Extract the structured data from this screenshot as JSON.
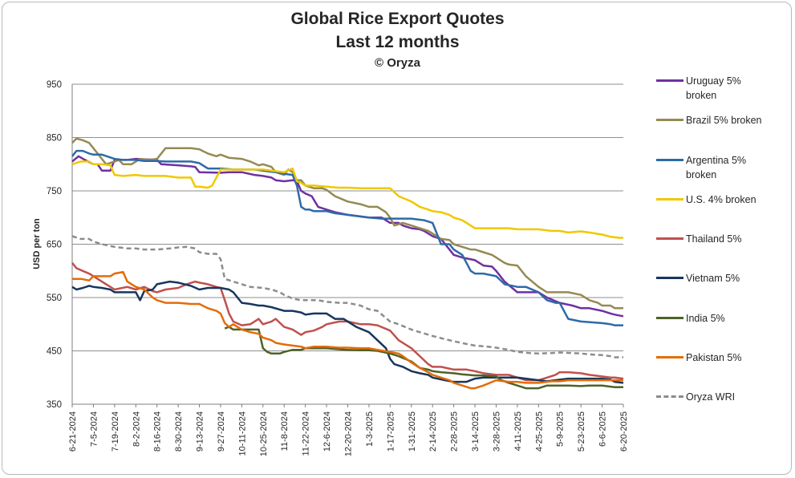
{
  "chart_data": {
    "type": "line",
    "title": "Global Rice Export Quotes",
    "subtitle": "Last 12 months",
    "source": "© Oryza",
    "ylabel": "USD per ton",
    "xlabel": "",
    "ylim": [
      350,
      950
    ],
    "yticks": [
      350,
      450,
      550,
      650,
      750,
      850,
      950
    ],
    "grid": true,
    "legend": "right",
    "x_ticks": [
      "6-21-2024",
      "7-5-2024",
      "7-19-2024",
      "8-2-2024",
      "8-16-2024",
      "8-30-2024",
      "9-13-2024",
      "9-27-2024",
      "10-11-2024",
      "10-25-2024",
      "11-8-2024",
      "11-22-2024",
      "12-6-2024",
      "12-20-2024",
      "1-3-2025",
      "1-17-2025",
      "1-31-2025",
      "2-14-2025",
      "2-28-2025",
      "3-14-2025",
      "3-28-2025",
      "4-11-2025",
      "4-25-2025",
      "5-9-2025",
      "5-23-2025",
      "6-6-2025",
      "6-20-2025"
    ],
    "series": [
      {
        "name": "Uruguay 5% broken",
        "color": "#7030a0",
        "dashed": false,
        "x": [
          0,
          0.3,
          0.6,
          1,
          1.2,
          1.4,
          1.8,
          2,
          2.4,
          2.6,
          3,
          4,
          4.2,
          5,
          5.6,
          5.8,
          6,
          7,
          7.4,
          8,
          8.6,
          9,
          9.4,
          9.6,
          10,
          10.4,
          10.6,
          10.8,
          11,
          11.3,
          11.6,
          12,
          12.4,
          13,
          14,
          14.2,
          14.6,
          15,
          15.4,
          15.6,
          16,
          16.4,
          16.6,
          17,
          17.4,
          17.6,
          18,
          18.4,
          19,
          19.4,
          19.8,
          20,
          20.4,
          21,
          21.6,
          22,
          22.4,
          23,
          23.6,
          24,
          24.4,
          25,
          25.4,
          25.6,
          26
        ],
        "y": [
          805,
          815,
          808,
          800,
          800,
          788,
          788,
          808,
          808,
          808,
          810,
          808,
          800,
          798,
          796,
          795,
          785,
          784,
          785,
          785,
          780,
          778,
          775,
          770,
          768,
          770,
          768,
          750,
          745,
          740,
          720,
          715,
          710,
          705,
          700,
          700,
          700,
          690,
          690,
          685,
          680,
          678,
          675,
          665,
          660,
          650,
          630,
          625,
          620,
          610,
          608,
          600,
          580,
          560,
          560,
          560,
          550,
          540,
          535,
          530,
          530,
          525,
          520,
          518,
          515
        ]
      },
      {
        "name": "Brazil 5% broken",
        "color": "#948a54",
        "dashed": false,
        "x": [
          0,
          0.2,
          0.5,
          0.8,
          1,
          1.2,
          1.6,
          2,
          2.2,
          2.4,
          2.8,
          3.2,
          3.6,
          4,
          4.4,
          5,
          5.6,
          6,
          6.4,
          6.8,
          7,
          7.4,
          8,
          8.4,
          8.8,
          9,
          9.4,
          9.6,
          10,
          10.2,
          10.4,
          10.6,
          10.8,
          11,
          11.4,
          11.8,
          12,
          12.4,
          13,
          13.6,
          14,
          14.4,
          14.8,
          15,
          15.2,
          15.6,
          16,
          16.4,
          16.8,
          17,
          17.4,
          17.8,
          18,
          18.4,
          18.8,
          19,
          19.4,
          19.8,
          20,
          20.4,
          20.6,
          21,
          21.4,
          22,
          22.4,
          22.8,
          23,
          23.4,
          24,
          24.4,
          24.8,
          25,
          25.4,
          25.6,
          26
        ],
        "y": [
          840,
          848,
          845,
          840,
          830,
          820,
          800,
          805,
          808,
          800,
          800,
          810,
          808,
          810,
          830,
          830,
          830,
          828,
          820,
          815,
          818,
          812,
          810,
          805,
          798,
          800,
          795,
          785,
          780,
          790,
          785,
          770,
          770,
          760,
          755,
          755,
          752,
          740,
          730,
          725,
          720,
          720,
          710,
          700,
          685,
          690,
          685,
          680,
          675,
          670,
          660,
          658,
          650,
          645,
          640,
          640,
          635,
          630,
          625,
          615,
          612,
          610,
          590,
          570,
          560,
          560,
          560,
          560,
          555,
          545,
          540,
          535,
          535,
          530,
          530
        ]
      },
      {
        "name": "Argentina 5% broken",
        "color": "#2e6aa8",
        "dashed": false,
        "x": [
          0,
          0.2,
          0.5,
          0.8,
          1,
          1.4,
          2,
          2.4,
          3,
          3.4,
          4,
          4.4,
          5,
          5.6,
          6,
          6.4,
          7,
          7.6,
          8,
          8.6,
          9,
          9.4,
          9.6,
          10,
          10.4,
          10.6,
          10.8,
          11,
          11.2,
          11.4,
          12,
          12.4,
          13,
          14,
          14.6,
          15,
          15.4,
          16,
          16.6,
          17,
          17.4,
          17.8,
          18,
          18.4,
          18.8,
          19,
          19.4,
          20,
          20.4,
          21,
          21.4,
          22,
          22.4,
          22.8,
          23,
          23.4,
          24,
          25,
          25.4,
          25.6,
          26
        ],
        "y": [
          815,
          825,
          825,
          820,
          818,
          818,
          810,
          808,
          808,
          806,
          806,
          805,
          805,
          805,
          802,
          792,
          792,
          790,
          790,
          790,
          788,
          786,
          785,
          782,
          780,
          760,
          720,
          715,
          715,
          712,
          712,
          708,
          705,
          700,
          698,
          698,
          698,
          698,
          695,
          690,
          650,
          650,
          640,
          630,
          600,
          595,
          595,
          590,
          575,
          570,
          570,
          560,
          545,
          540,
          540,
          510,
          505,
          502,
          500,
          498,
          498
        ]
      },
      {
        "name": "U.S. 4% broken",
        "color": "#f0c800",
        "dashed": false,
        "x": [
          0,
          0.4,
          0.8,
          1,
          1.4,
          1.8,
          2,
          2.4,
          3,
          3.4,
          4,
          4.4,
          5,
          5.6,
          5.8,
          6,
          6.4,
          6.6,
          7,
          7.4,
          8,
          8.6,
          9,
          9.4,
          10,
          10.4,
          10.6,
          10.8,
          11,
          11.4,
          12,
          12.6,
          13,
          13.6,
          14,
          14.4,
          15,
          15.4,
          16,
          16.4,
          16.8,
          17,
          17.4,
          17.8,
          18,
          18.4,
          19,
          19.4,
          20,
          20.6,
          21,
          21.4,
          22,
          22.6,
          23,
          23.4,
          24,
          24.4,
          25,
          25.4,
          25.8,
          26
        ],
        "y": [
          800,
          805,
          805,
          800,
          800,
          798,
          780,
          778,
          780,
          778,
          778,
          778,
          775,
          775,
          758,
          758,
          756,
          760,
          790,
          790,
          790,
          790,
          790,
          788,
          785,
          792,
          768,
          765,
          760,
          760,
          758,
          756,
          756,
          755,
          755,
          755,
          755,
          740,
          730,
          720,
          715,
          712,
          710,
          705,
          700,
          695,
          680,
          680,
          680,
          680,
          678,
          678,
          678,
          675,
          675,
          672,
          674,
          672,
          668,
          664,
          662,
          662
        ]
      },
      {
        "name": "Thailand 5%",
        "color": "#c0504d",
        "dashed": false,
        "x": [
          0,
          0.2,
          0.5,
          0.8,
          1,
          1.4,
          1.8,
          2,
          2.6,
          3,
          3.4,
          3.8,
          4,
          4.4,
          5,
          5.4,
          5.8,
          6,
          6.4,
          6.8,
          7,
          7.2,
          7.4,
          7.6,
          8,
          8.4,
          8.8,
          9,
          9.4,
          9.6,
          10,
          10.4,
          10.8,
          11,
          11.4,
          11.8,
          12,
          12.6,
          13,
          13.6,
          14,
          14.4,
          15,
          15.4,
          16,
          16.4,
          16.8,
          17,
          17.4,
          18,
          18.6,
          19,
          19.4,
          20,
          20.6,
          21,
          21.4,
          22,
          22.4,
          22.8,
          23,
          23.4,
          24,
          24.4,
          25,
          25.4,
          25.6,
          26
        ],
        "y": [
          615,
          605,
          600,
          595,
          590,
          580,
          570,
          565,
          570,
          565,
          570,
          562,
          560,
          565,
          568,
          575,
          580,
          578,
          575,
          570,
          568,
          545,
          520,
          505,
          498,
          500,
          510,
          500,
          505,
          510,
          495,
          490,
          480,
          485,
          488,
          495,
          500,
          505,
          505,
          500,
          500,
          498,
          488,
          470,
          455,
          440,
          425,
          420,
          420,
          415,
          415,
          412,
          408,
          405,
          405,
          400,
          395,
          395,
          400,
          405,
          410,
          410,
          408,
          405,
          402,
          400,
          400,
          398
        ]
      },
      {
        "name": "Vietnam 5%",
        "color": "#17365d",
        "dashed": false,
        "x": [
          0,
          0.2,
          0.5,
          0.8,
          1,
          1.4,
          1.8,
          2,
          2.6,
          3,
          3.2,
          3.4,
          3.8,
          4,
          4.6,
          5,
          5.6,
          6,
          6.4,
          7,
          7.4,
          7.6,
          8,
          8.4,
          8.8,
          9,
          9.4,
          10,
          10.4,
          10.8,
          11,
          11.4,
          12,
          12.4,
          12.8,
          13,
          13.4,
          14,
          14.4,
          14.8,
          15,
          15.2,
          15.6,
          16,
          16.4,
          16.8,
          17,
          17.6,
          18,
          18.6,
          19,
          19.4,
          20,
          20.6,
          21,
          21.4,
          22,
          22.4,
          23,
          23.4,
          24,
          24.4,
          25,
          25.4,
          25.6,
          26
        ],
        "y": [
          570,
          565,
          568,
          572,
          570,
          568,
          565,
          560,
          560,
          560,
          545,
          562,
          565,
          575,
          580,
          578,
          572,
          565,
          568,
          568,
          565,
          560,
          540,
          538,
          535,
          535,
          532,
          525,
          525,
          522,
          518,
          520,
          520,
          510,
          510,
          505,
          495,
          485,
          470,
          455,
          435,
          425,
          420,
          412,
          408,
          405,
          400,
          395,
          392,
          392,
          398,
          400,
          400,
          400,
          400,
          398,
          395,
          393,
          396,
          398,
          398,
          398,
          398,
          396,
          392,
          390
        ]
      },
      {
        "name": "India 5%",
        "color": "#4f6228",
        "dashed": false,
        "x": [
          7.2,
          7.4,
          7.6,
          8,
          8.4,
          8.8,
          9,
          9.2,
          9.4,
          9.8,
          10,
          10.4,
          10.8,
          11,
          11.4,
          12,
          12.6,
          13,
          13.6,
          14,
          14.4,
          15,
          15.4,
          16,
          16.4,
          16.8,
          17,
          17.4,
          18,
          18.4,
          19,
          19.4,
          20,
          20.2,
          20.6,
          21,
          21.4,
          22,
          22.4,
          23,
          23.4,
          24,
          24.4,
          25,
          25.4,
          25.6,
          26
        ],
        "y": [
          492,
          495,
          490,
          490,
          490,
          490,
          455,
          448,
          445,
          445,
          448,
          452,
          452,
          455,
          455,
          455,
          453,
          452,
          451,
          451,
          450,
          445,
          440,
          430,
          418,
          415,
          412,
          410,
          408,
          406,
          404,
          404,
          402,
          396,
          390,
          385,
          380,
          380,
          385,
          385,
          385,
          384,
          385,
          385,
          383,
          382,
          382
        ]
      },
      {
        "name": "Pakistan 5%",
        "color": "#e36c09",
        "dashed": false,
        "x": [
          0,
          0.4,
          0.8,
          1,
          1.4,
          1.8,
          2,
          2.4,
          2.6,
          3,
          3.4,
          3.8,
          4,
          4.4,
          5,
          5.6,
          6,
          6.4,
          6.8,
          7,
          7.2,
          7.4,
          7.6,
          8,
          8.4,
          8.8,
          9,
          9.4,
          9.6,
          10,
          10.4,
          10.8,
          11,
          11.4,
          12,
          12.6,
          13,
          13.6,
          14,
          14.4,
          15,
          15.4,
          15.6,
          16,
          16.4,
          16.8,
          17,
          17.4,
          17.8,
          18,
          18.4,
          18.8,
          19,
          19.4,
          20,
          20.6,
          21,
          21.4,
          22,
          22.6,
          23,
          23.4,
          24,
          24.4,
          25,
          25.4,
          25.6,
          26
        ],
        "y": [
          585,
          585,
          582,
          590,
          590,
          590,
          595,
          598,
          580,
          570,
          565,
          550,
          545,
          540,
          540,
          538,
          538,
          530,
          525,
          520,
          502,
          495,
          500,
          490,
          485,
          482,
          475,
          470,
          465,
          462,
          460,
          458,
          455,
          458,
          458,
          456,
          456,
          455,
          455,
          452,
          448,
          445,
          440,
          428,
          418,
          410,
          405,
          400,
          395,
          390,
          385,
          380,
          380,
          385,
          395,
          392,
          392,
          390,
          390,
          393,
          393,
          395,
          395,
          395,
          395,
          395,
          395,
          395
        ]
      },
      {
        "name": "Oryza WRI",
        "color": "#8c8c8c",
        "dashed": true,
        "x": [
          0,
          0.4,
          0.8,
          1,
          1.4,
          2,
          2.6,
          3,
          3.4,
          4,
          4.6,
          5,
          5.4,
          5.8,
          6,
          6.4,
          6.8,
          7,
          7.2,
          7.6,
          8,
          8.4,
          9,
          9.4,
          9.8,
          10,
          10.4,
          10.8,
          11,
          11.6,
          12,
          12.6,
          13,
          13.6,
          14,
          14.4,
          15,
          15.4,
          16,
          16.4,
          17,
          17.6,
          18,
          18.6,
          19,
          19.6,
          20,
          20.6,
          21,
          21.6,
          22,
          22.6,
          23,
          23.6,
          24,
          24.6,
          25,
          25.4,
          25.6,
          26
        ],
        "y": [
          665,
          660,
          660,
          655,
          650,
          645,
          642,
          642,
          640,
          640,
          642,
          644,
          645,
          642,
          635,
          632,
          632,
          622,
          585,
          580,
          575,
          570,
          568,
          565,
          560,
          555,
          548,
          545,
          545,
          545,
          542,
          540,
          540,
          535,
          528,
          525,
          505,
          500,
          490,
          485,
          478,
          472,
          468,
          463,
          460,
          458,
          456,
          452,
          448,
          446,
          445,
          446,
          447,
          446,
          445,
          443,
          442,
          440,
          438,
          438
        ]
      }
    ],
    "legend_labels": [
      [
        "Uruguay 5%",
        "broken"
      ],
      [
        "Brazil 5% broken"
      ],
      [
        "Argentina 5%",
        "broken"
      ],
      [
        "U.S. 4% broken"
      ],
      [
        "Thailand 5%"
      ],
      [
        "Vietnam 5%"
      ],
      [
        "India 5%"
      ],
      [
        "Pakistan 5%"
      ],
      [
        "Oryza WRI"
      ]
    ]
  }
}
